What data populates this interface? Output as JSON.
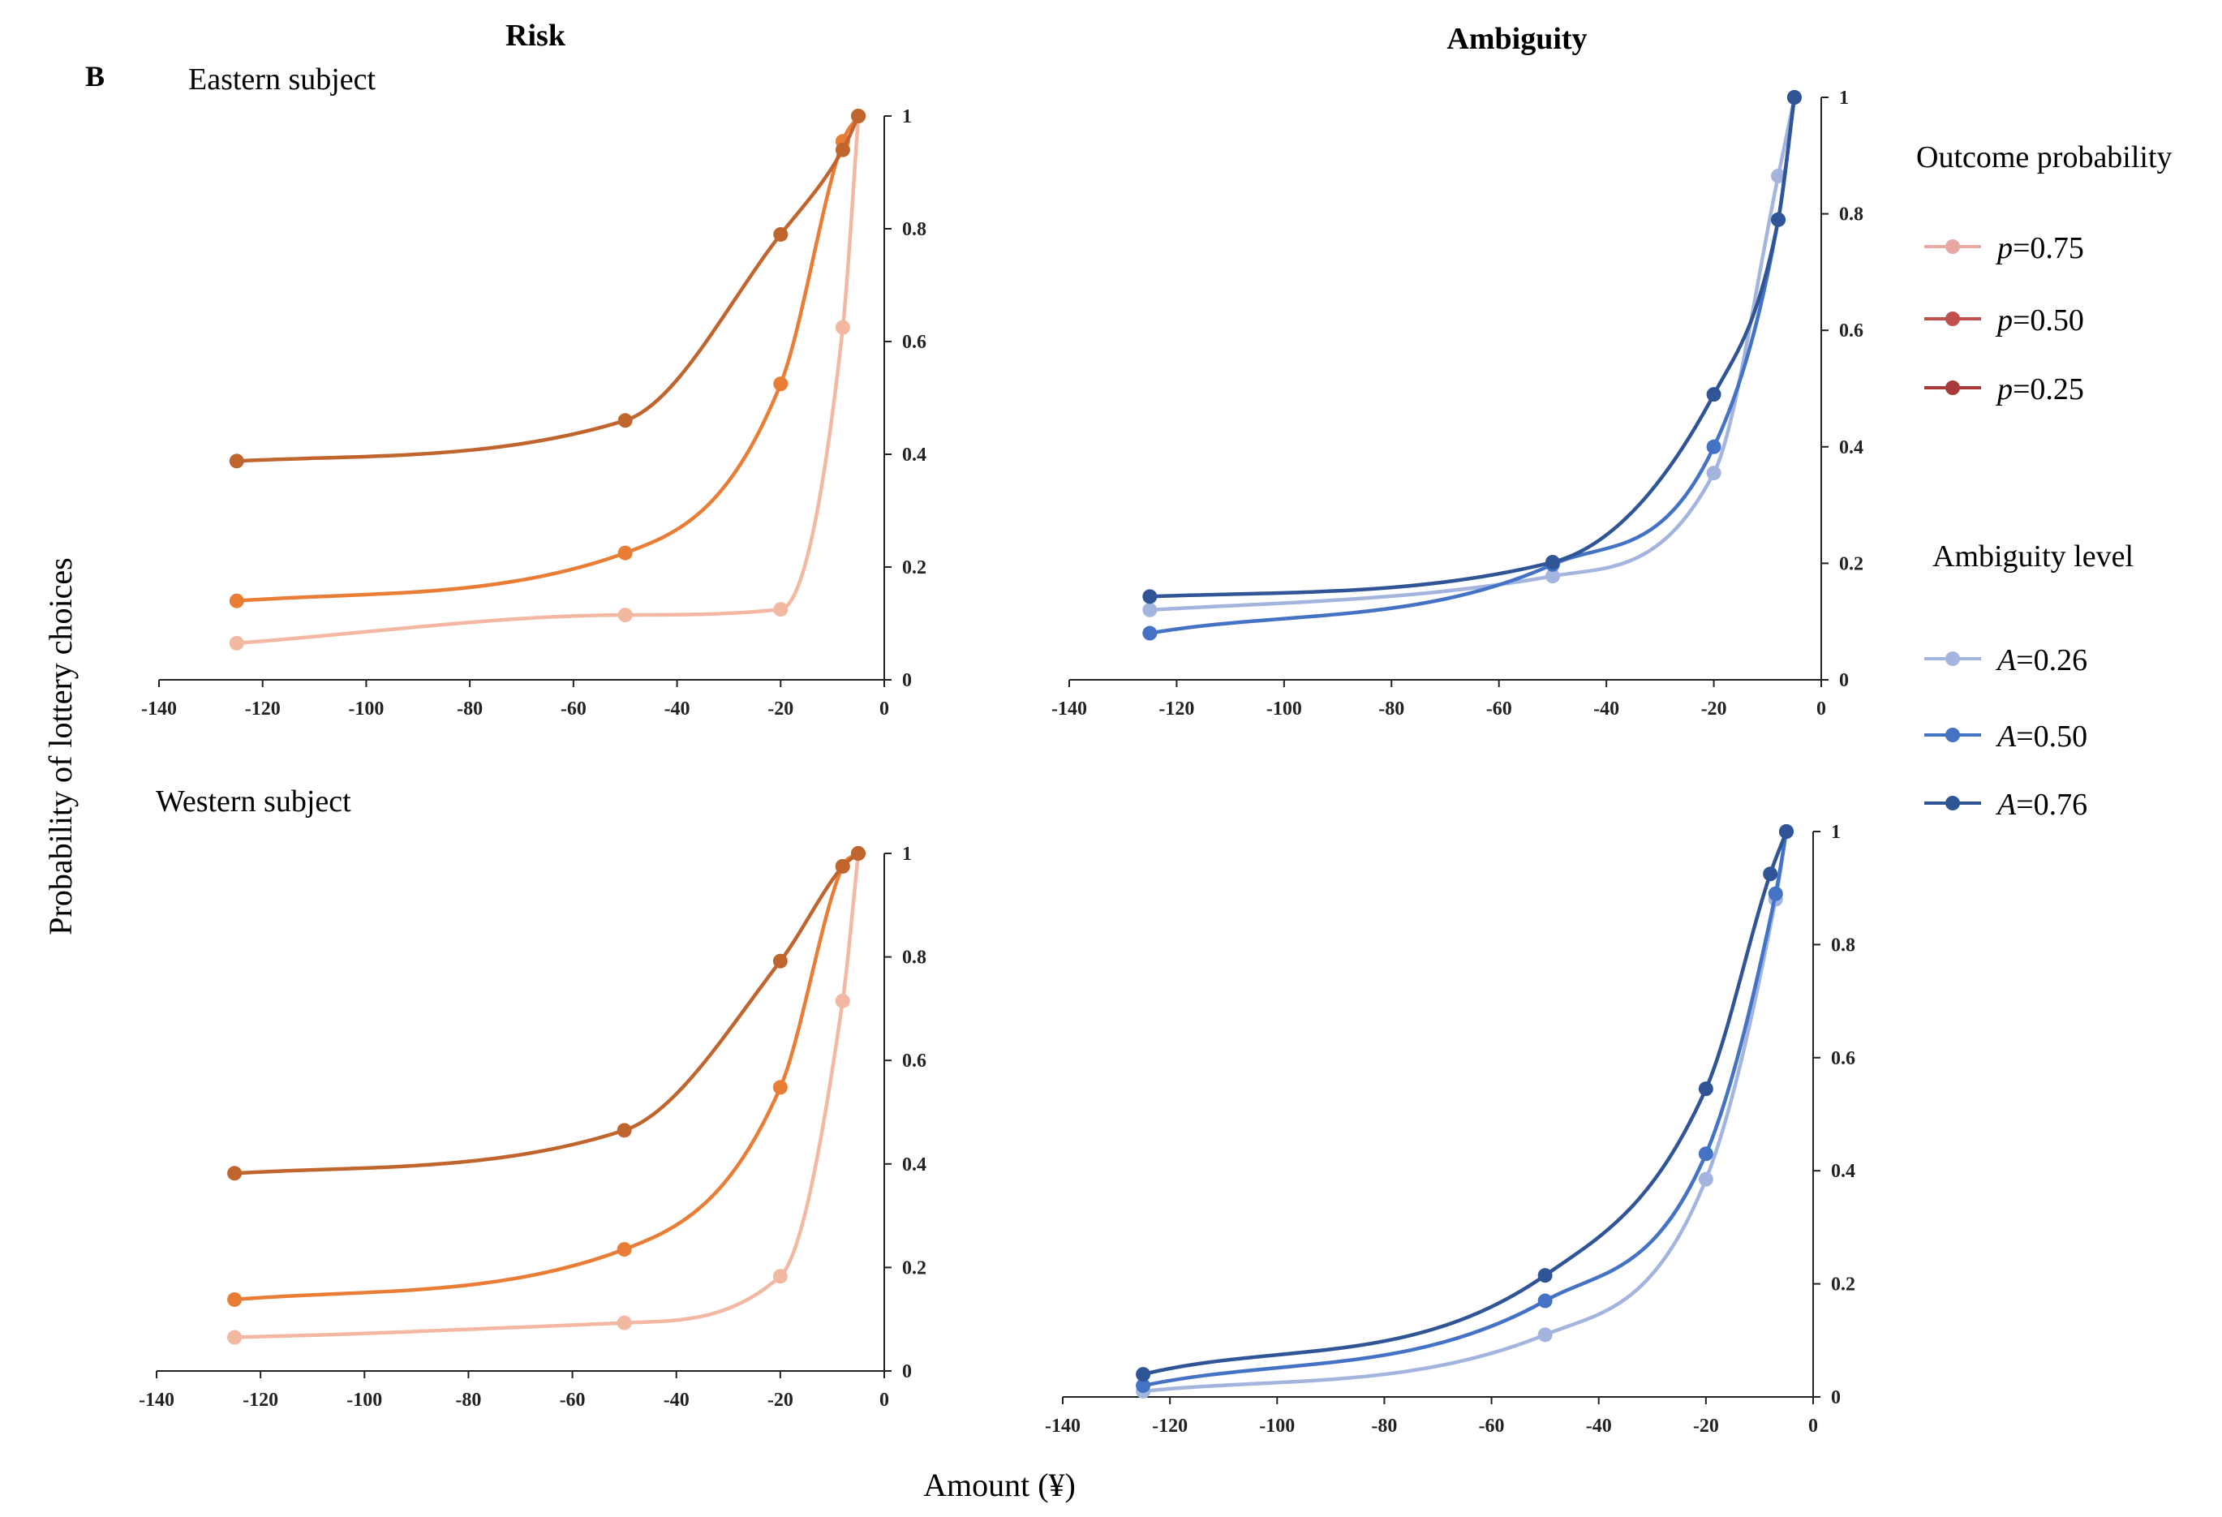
{
  "figure": {
    "panel_label": "B",
    "x_axis_title": "Amount (¥)",
    "y_axis_title": "Probability of lottery choices",
    "column_titles": {
      "risk": "Risk",
      "ambiguity": "Ambiguity"
    },
    "row_titles": {
      "eastern": "Eastern subject",
      "western": "Western subject"
    }
  },
  "legend": {
    "risk": {
      "title": "Outcome probability",
      "items": [
        {
          "var": "p",
          "text": "=0.75",
          "color": "#e8a8a4"
        },
        {
          "var": "p",
          "text": "=0.50",
          "color": "#c0504d"
        },
        {
          "var": "p",
          "text": "=0.25",
          "color": "#a83a3a"
        }
      ]
    },
    "ambiguity": {
      "title": "Ambiguity level",
      "items": [
        {
          "var": "A",
          "text": "=0.26",
          "color": "#a3b5df"
        },
        {
          "var": "A",
          "text": "=0.50",
          "color": "#4472c4"
        },
        {
          "var": "A",
          "text": "=0.76",
          "color": "#2f5597"
        }
      ]
    }
  },
  "chart_data": [
    {
      "type": "line",
      "id": "risk-eastern",
      "title": "Risk — Eastern subject",
      "xlabel": "Amount (¥)",
      "ylabel": "Probability of lottery choices",
      "xlim": [
        -140,
        0
      ],
      "ylim": [
        0,
        1
      ],
      "xticks": [
        "-140",
        "-120",
        "-100",
        "-80",
        "-60",
        "-40",
        "-20",
        "0"
      ],
      "yticks": [
        "0",
        "0.2",
        "0.4",
        "0.6",
        "0.8",
        "1"
      ],
      "series": [
        {
          "name": "p=0.75",
          "color": "#f2b8a2",
          "x": [
            -125,
            -50,
            -20,
            -8,
            -5
          ],
          "y": [
            0.065,
            0.115,
            0.125,
            0.625,
            1.0
          ]
        },
        {
          "name": "p=0.50",
          "color": "#ea7d35",
          "x": [
            -125,
            -50,
            -20,
            -8,
            -5
          ],
          "y": [
            0.14,
            0.225,
            0.525,
            0.955,
            1.0
          ]
        },
        {
          "name": "p=0.25",
          "color": "#c0652e",
          "x": [
            -125,
            -50,
            -20,
            -8,
            -5
          ],
          "y": [
            0.388,
            0.46,
            0.79,
            0.94,
            1.0
          ]
        }
      ]
    },
    {
      "type": "line",
      "id": "ambiguity-eastern",
      "title": "Ambiguity — Eastern subject",
      "xlabel": "Amount (¥)",
      "ylabel": "Probability of lottery choices",
      "xlim": [
        -140,
        0
      ],
      "ylim": [
        0,
        1
      ],
      "xticks": [
        "-140",
        "-120",
        "-100",
        "-80",
        "-60",
        "-40",
        "-20",
        "0"
      ],
      "yticks": [
        "0",
        "0.2",
        "0.4",
        "0.6",
        "0.8",
        "1"
      ],
      "series": [
        {
          "name": "A=0.26",
          "color": "#a3b5df",
          "x": [
            -125,
            -50,
            -20,
            -8,
            -5
          ],
          "y": [
            0.12,
            0.178,
            0.355,
            0.865,
            1.0
          ]
        },
        {
          "name": "A=0.50",
          "color": "#4472c4",
          "x": [
            -125,
            -50,
            -20,
            -8,
            -5
          ],
          "y": [
            0.08,
            0.198,
            0.4,
            0.79,
            1.0
          ]
        },
        {
          "name": "A=0.76",
          "color": "#2f5597",
          "x": [
            -125,
            -50,
            -20,
            -8,
            -5
          ],
          "y": [
            0.143,
            0.202,
            0.49,
            0.79,
            1.0
          ]
        }
      ]
    },
    {
      "type": "line",
      "id": "risk-western",
      "title": "Risk — Western subject",
      "xlabel": "Amount (¥)",
      "ylabel": "Probability of lottery choices",
      "xlim": [
        -140,
        0
      ],
      "ylim": [
        0,
        1
      ],
      "xticks": [
        "-140",
        "-120",
        "-100",
        "-80",
        "-60",
        "-40",
        "-20",
        "0"
      ],
      "yticks": [
        "0",
        "0.2",
        "0.4",
        "0.6",
        "0.8",
        "1"
      ],
      "series": [
        {
          "name": "p=0.75",
          "color": "#f2b8a2",
          "x": [
            -125,
            -50,
            -20,
            -8,
            -5
          ],
          "y": [
            0.065,
            0.093,
            0.183,
            0.715,
            1.0
          ]
        },
        {
          "name": "p=0.50",
          "color": "#ea7d35",
          "x": [
            -125,
            -50,
            -20,
            -8,
            -5
          ],
          "y": [
            0.138,
            0.235,
            0.548,
            0.975,
            1.0
          ]
        },
        {
          "name": "p=0.25",
          "color": "#c0652e",
          "x": [
            -125,
            -50,
            -20,
            -8,
            -5
          ],
          "y": [
            0.382,
            0.465,
            0.792,
            0.975,
            1.0
          ]
        }
      ]
    },
    {
      "type": "line",
      "id": "ambiguity-western",
      "title": "Ambiguity — Western subject",
      "xlabel": "Amount (¥)",
      "ylabel": "Probability of lottery choices",
      "xlim": [
        -140,
        0
      ],
      "ylim": [
        0,
        1
      ],
      "xticks": [
        "-140",
        "-120",
        "-100",
        "-80",
        "-60",
        "-40",
        "-20",
        "0"
      ],
      "yticks": [
        "0",
        "0.2",
        "0.4",
        "0.6",
        "0.8",
        "1"
      ],
      "series": [
        {
          "name": "A=0.26",
          "color": "#a3b5df",
          "x": [
            -125,
            -50,
            -20,
            -7,
            -5
          ],
          "y": [
            0.01,
            0.11,
            0.385,
            0.88,
            1.0
          ]
        },
        {
          "name": "A=0.50",
          "color": "#4472c4",
          "x": [
            -125,
            -50,
            -20,
            -7,
            -5
          ],
          "y": [
            0.02,
            0.17,
            0.43,
            0.89,
            1.0
          ]
        },
        {
          "name": "A=0.76",
          "color": "#2f5597",
          "x": [
            -125,
            -50,
            -20,
            -8,
            -5
          ],
          "y": [
            0.04,
            0.215,
            0.545,
            0.925,
            1.0
          ]
        }
      ]
    }
  ]
}
